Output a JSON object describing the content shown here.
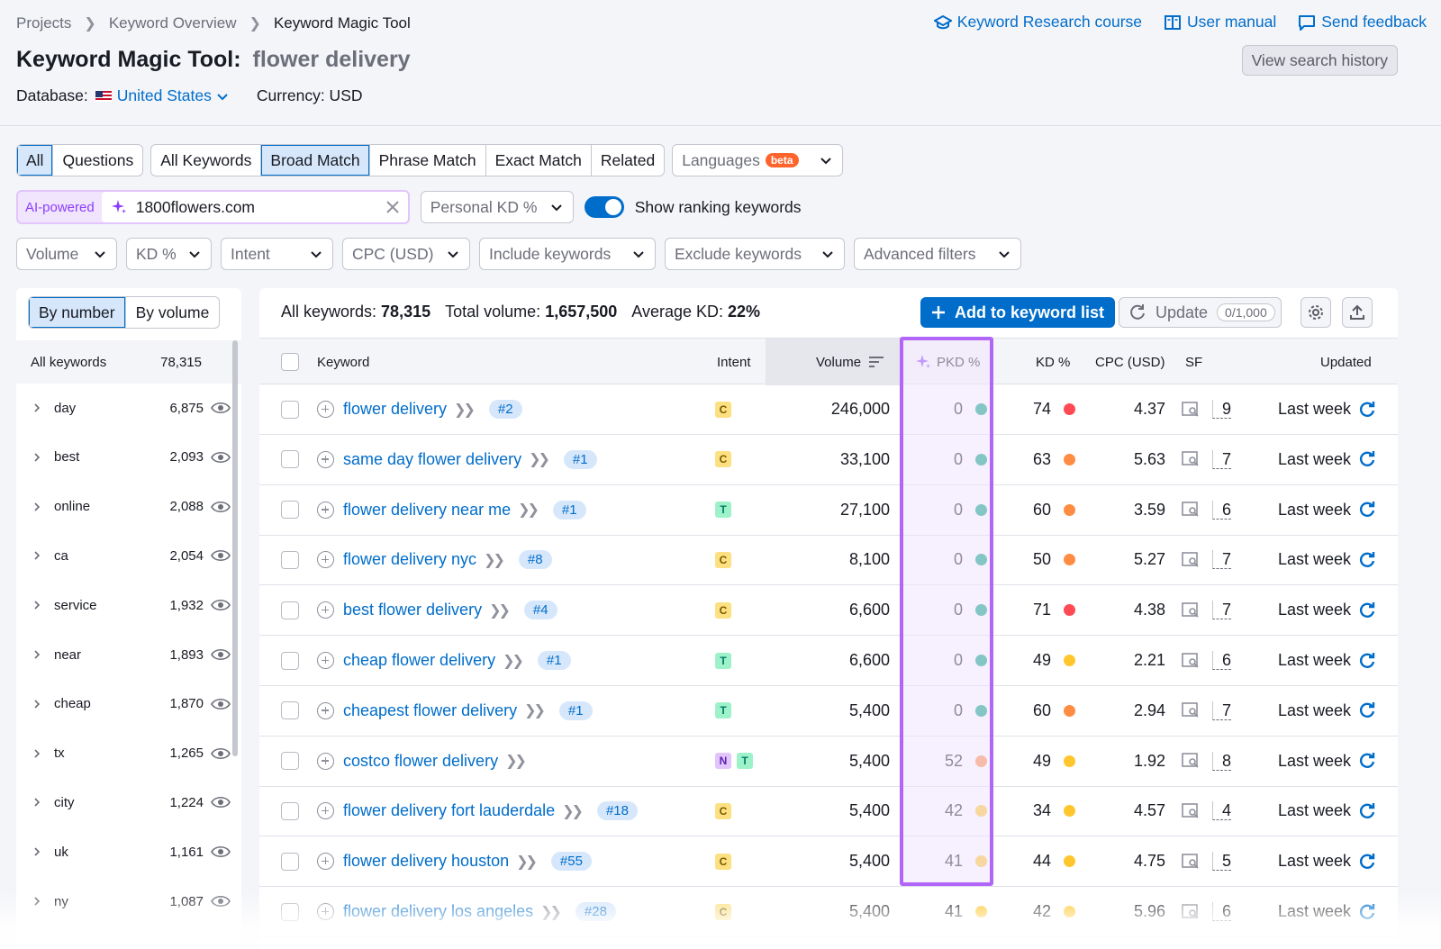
{
  "breadcrumb": [
    "Projects",
    "Keyword Overview",
    "Keyword Magic Tool"
  ],
  "top_links": [
    "Keyword Research course",
    "User manual",
    "Send feedback"
  ],
  "title": {
    "prefix": "Keyword Magic Tool:",
    "query": "flower delivery"
  },
  "database": {
    "label": "Database:",
    "value": "United States",
    "currency": "Currency: USD"
  },
  "view_history": "View search history",
  "tabs_scope": [
    "All",
    "Questions"
  ],
  "tabs_match": [
    "All Keywords",
    "Broad Match",
    "Phrase Match",
    "Exact Match",
    "Related"
  ],
  "languages": {
    "label": "Languages",
    "badge": "beta"
  },
  "ai": {
    "label": "AI-powered",
    "value": "1800flowers.com"
  },
  "personal_kd": "Personal KD %",
  "show_ranking": "Show ranking keywords",
  "filters": [
    "Volume",
    "KD %",
    "Intent",
    "CPC (USD)",
    "Include keywords",
    "Exclude keywords",
    "Advanced filters"
  ],
  "left_tabs": [
    "By number",
    "By volume"
  ],
  "left_header": {
    "label": "All keywords",
    "count": "78,315"
  },
  "groups": [
    {
      "name": "day",
      "count": "6,875"
    },
    {
      "name": "best",
      "count": "2,093"
    },
    {
      "name": "online",
      "count": "2,088"
    },
    {
      "name": "ca",
      "count": "2,054"
    },
    {
      "name": "service",
      "count": "1,932"
    },
    {
      "name": "near",
      "count": "1,893"
    },
    {
      "name": "cheap",
      "count": "1,870"
    },
    {
      "name": "tx",
      "count": "1,265"
    },
    {
      "name": "city",
      "count": "1,224"
    },
    {
      "name": "uk",
      "count": "1,161"
    },
    {
      "name": "ny",
      "count": "1,087"
    }
  ],
  "stats": {
    "all_label": "All keywords:",
    "all_val": "78,315",
    "vol_label": "Total volume:",
    "vol_val": "1,657,500",
    "kd_label": "Average KD:",
    "kd_val": "22%"
  },
  "add_button": "Add to keyword list",
  "update": {
    "label": "Update",
    "count": "0/1,000"
  },
  "columns": {
    "keyword": "Keyword",
    "intent": "Intent",
    "volume": "Volume",
    "pkd": "PKD %",
    "kd": "KD %",
    "cpc": "CPC (USD)",
    "sf": "SF",
    "updated": "Updated"
  },
  "colors": {
    "green": "#009f81",
    "orange": "#ff8c43",
    "red": "#ff4953",
    "yellow": "#ffc72d",
    "accent": "#006dca",
    "purple": "#b266f7"
  },
  "rows": [
    {
      "kw": "flower delivery",
      "pos": "#2",
      "intent": [
        "C"
      ],
      "volume": "246,000",
      "pkd": "0",
      "pkd_color": "green",
      "kd": "74",
      "kd_color": "red",
      "cpc": "4.37",
      "sf": "9",
      "updated": "Last week"
    },
    {
      "kw": "same day flower delivery",
      "pos": "#1",
      "intent": [
        "C"
      ],
      "volume": "33,100",
      "pkd": "0",
      "pkd_color": "green",
      "kd": "63",
      "kd_color": "orange",
      "cpc": "5.63",
      "sf": "7",
      "updated": "Last week"
    },
    {
      "kw": "flower delivery near me",
      "pos": "#1",
      "intent": [
        "T"
      ],
      "volume": "27,100",
      "pkd": "0",
      "pkd_color": "green",
      "kd": "60",
      "kd_color": "orange",
      "cpc": "3.59",
      "sf": "6",
      "updated": "Last week"
    },
    {
      "kw": "flower delivery nyc",
      "pos": "#8",
      "intent": [
        "C"
      ],
      "volume": "8,100",
      "pkd": "0",
      "pkd_color": "green",
      "kd": "50",
      "kd_color": "orange",
      "cpc": "5.27",
      "sf": "7",
      "updated": "Last week"
    },
    {
      "kw": "best flower delivery",
      "pos": "#4",
      "intent": [
        "C"
      ],
      "volume": "6,600",
      "pkd": "0",
      "pkd_color": "green",
      "kd": "71",
      "kd_color": "red",
      "cpc": "4.38",
      "sf": "7",
      "updated": "Last week"
    },
    {
      "kw": "cheap flower delivery",
      "pos": "#1",
      "intent": [
        "T"
      ],
      "volume": "6,600",
      "pkd": "0",
      "pkd_color": "green",
      "kd": "49",
      "kd_color": "yellow",
      "cpc": "2.21",
      "sf": "6",
      "updated": "Last week"
    },
    {
      "kw": "cheapest flower delivery",
      "pos": "#1",
      "intent": [
        "T"
      ],
      "volume": "5,400",
      "pkd": "0",
      "pkd_color": "green",
      "kd": "60",
      "kd_color": "orange",
      "cpc": "2.94",
      "sf": "7",
      "updated": "Last week"
    },
    {
      "kw": "costco flower delivery",
      "pos": "",
      "intent": [
        "N",
        "T"
      ],
      "volume": "5,400",
      "pkd": "52",
      "pkd_color": "orange",
      "kd": "49",
      "kd_color": "yellow",
      "cpc": "1.92",
      "sf": "8",
      "updated": "Last week"
    },
    {
      "kw": "flower delivery fort lauderdale",
      "pos": "#18",
      "intent": [
        "C"
      ],
      "volume": "5,400",
      "pkd": "42",
      "pkd_color": "yellow",
      "kd": "34",
      "kd_color": "yellow",
      "cpc": "4.57",
      "sf": "4",
      "updated": "Last week"
    },
    {
      "kw": "flower delivery houston",
      "pos": "#55",
      "intent": [
        "C"
      ],
      "volume": "5,400",
      "pkd": "41",
      "pkd_color": "yellow",
      "kd": "44",
      "kd_color": "yellow",
      "cpc": "4.75",
      "sf": "5",
      "updated": "Last week"
    },
    {
      "kw": "flower delivery los angeles",
      "pos": "#28",
      "intent": [
        "C"
      ],
      "volume": "5,400",
      "pkd": "41",
      "pkd_color": "yellow",
      "kd": "42",
      "kd_color": "yellow",
      "cpc": "5.96",
      "sf": "6",
      "updated": "Last week"
    }
  ]
}
